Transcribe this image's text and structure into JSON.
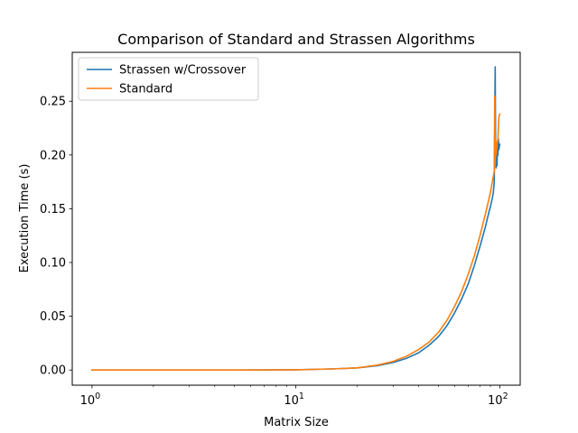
{
  "chart_data": {
    "type": "line",
    "title": "Comparison of Standard and Strassen Algorithms",
    "xlabel": "Matrix Size",
    "ylabel": "Execution Time (s)",
    "xscale": "log",
    "xlim": [
      0.8,
      126
    ],
    "ylim": [
      -0.0141,
      0.2955
    ],
    "x_ticks": [
      {
        "value": 1,
        "base": "10",
        "exp": "0"
      },
      {
        "value": 10,
        "base": "10",
        "exp": "1"
      },
      {
        "value": 100,
        "base": "10",
        "exp": "2"
      }
    ],
    "y_ticks": [
      {
        "value": 0.0,
        "label": "0.00"
      },
      {
        "value": 0.05,
        "label": "0.05"
      },
      {
        "value": 0.1,
        "label": "0.10"
      },
      {
        "value": 0.15,
        "label": "0.15"
      },
      {
        "value": 0.2,
        "label": "0.20"
      },
      {
        "value": 0.25,
        "label": "0.25"
      }
    ],
    "grid": false,
    "legend_position": "top-left",
    "series": [
      {
        "name": "Strassen w/Crossover",
        "color": "#1f77b4",
        "x": [
          1,
          2,
          5,
          10,
          15,
          20,
          25,
          30,
          35,
          40,
          45,
          50,
          55,
          60,
          65,
          70,
          75,
          80,
          85,
          88,
          90,
          92,
          93,
          94,
          95,
          95.5,
          96,
          96.5,
          97,
          97.5,
          98,
          98.5,
          99,
          100
        ],
        "y": [
          0.0,
          0.0,
          0.0,
          0.0002,
          0.001,
          0.002,
          0.004,
          0.007,
          0.011,
          0.016,
          0.023,
          0.031,
          0.041,
          0.053,
          0.066,
          0.08,
          0.097,
          0.115,
          0.133,
          0.145,
          0.152,
          0.16,
          0.165,
          0.175,
          0.282,
          0.195,
          0.188,
          0.205,
          0.19,
          0.21,
          0.2,
          0.215,
          0.205,
          0.21
        ]
      },
      {
        "name": "Standard",
        "color": "#ff7f0e",
        "x": [
          1,
          2,
          5,
          10,
          15,
          20,
          25,
          30,
          35,
          40,
          45,
          50,
          55,
          60,
          65,
          70,
          75,
          80,
          85,
          88,
          90,
          92,
          93,
          94,
          94.5,
          95,
          95.5,
          96,
          97,
          98,
          99,
          100
        ],
        "y": [
          0.0,
          0.0,
          0.0,
          0.0002,
          0.001,
          0.002,
          0.0045,
          0.008,
          0.013,
          0.019,
          0.026,
          0.035,
          0.046,
          0.059,
          0.073,
          0.089,
          0.106,
          0.125,
          0.145,
          0.157,
          0.165,
          0.175,
          0.18,
          0.185,
          0.255,
          0.19,
          0.215,
          0.2,
          0.21,
          0.215,
          0.235,
          0.238
        ]
      }
    ]
  }
}
